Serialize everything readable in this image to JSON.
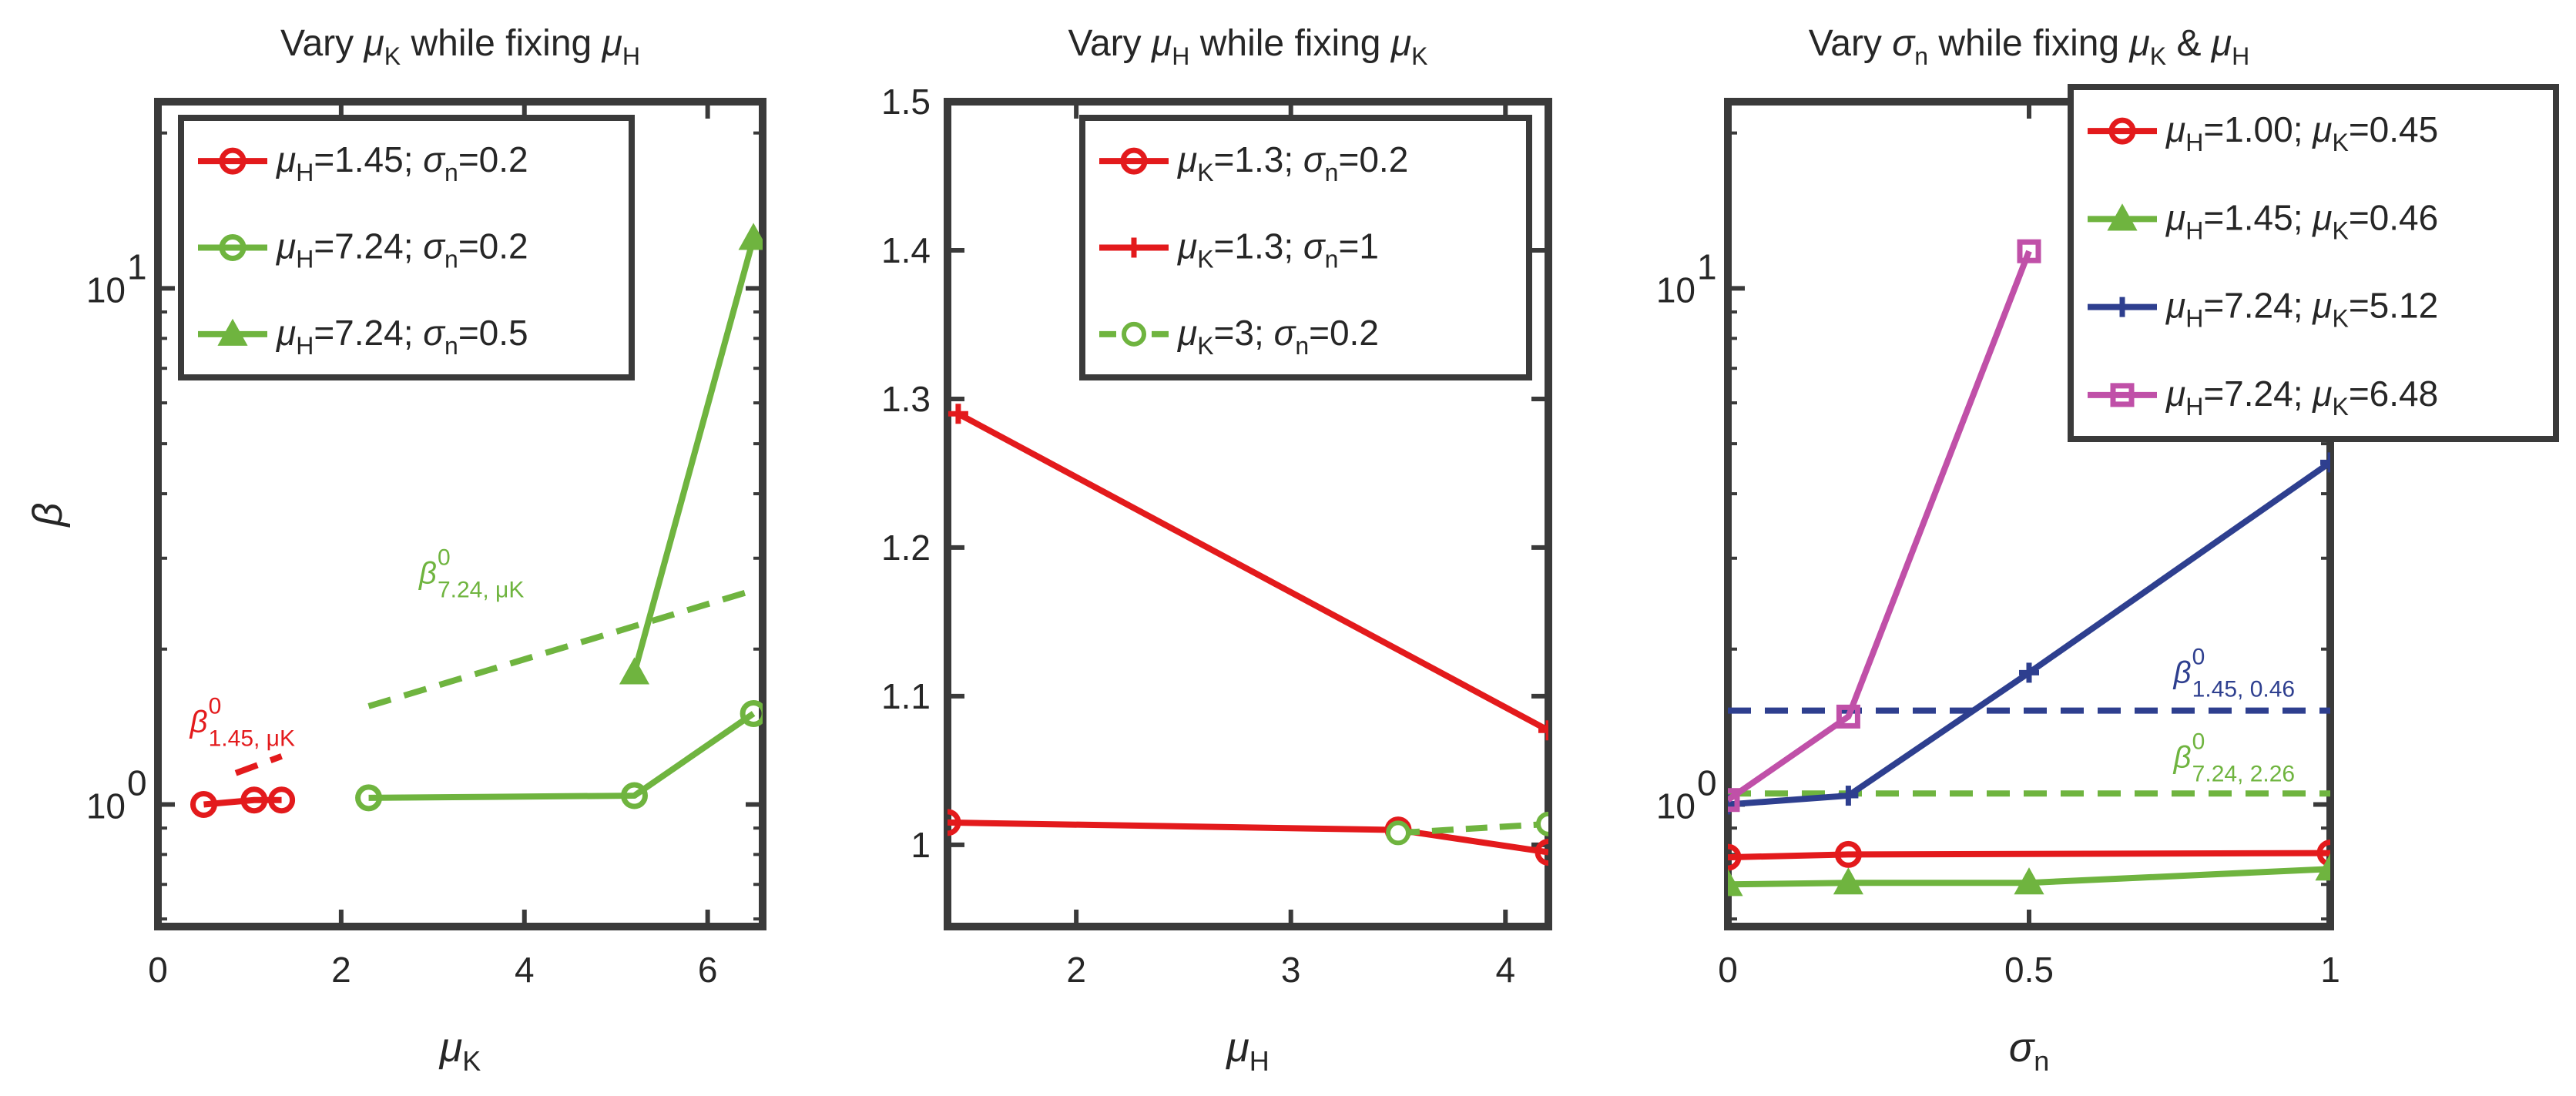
{
  "chart_data": [
    {
      "type": "line",
      "title": "Vary  μK while fixing  μH",
      "title_parts": [
        "Vary  ",
        "μ",
        "K",
        " while fixing  ",
        "μ",
        "H"
      ],
      "xlabel": "μK",
      "xlabel_parts": [
        "μ",
        "K"
      ],
      "ylabel": "β",
      "yscale": "log",
      "xlim": [
        0,
        6.6
      ],
      "ylim": [
        0.58,
        23
      ],
      "xticks": [
        0,
        2,
        4,
        6
      ],
      "xtick_labels": [
        "0",
        "2",
        "4",
        "6"
      ],
      "yticks": [
        1,
        10
      ],
      "ytick_labels": [
        {
          "base": "10",
          "exp": "0"
        },
        {
          "base": "10",
          "exp": "1"
        }
      ],
      "legend_position": "top-left",
      "series": [
        {
          "name": "μH=1.45;  σn=0.2",
          "label_parts": [
            "μ",
            "H",
            "=1.45;  ",
            "σ",
            "n",
            "=0.2"
          ],
          "color": "#e31a1c",
          "marker": "circle",
          "x": [
            0.5,
            1.05,
            1.35
          ],
          "y": [
            1.0,
            1.02,
            1.02
          ]
        },
        {
          "name": "μH=7.24;  σn=0.2",
          "label_parts": [
            "μ",
            "H",
            "=7.24;  ",
            "σ",
            "n",
            "=0.2"
          ],
          "color": "#6fb43f",
          "marker": "circle",
          "x": [
            2.3,
            5.2,
            6.5
          ],
          "y": [
            1.03,
            1.04,
            1.5
          ]
        },
        {
          "name": "μH=7.24;  σn=0.5",
          "label_parts": [
            "μ",
            "H",
            "=7.24;  ",
            "σ",
            "n",
            "=0.5"
          ],
          "color": "#6fb43f",
          "marker": "triangle",
          "x": [
            5.2,
            6.5
          ],
          "y": [
            1.8,
            12.5
          ]
        }
      ],
      "reference_lines": [
        {
          "name": "β0 1.45, μK",
          "color": "#e31a1c",
          "x": [
            0.85,
            1.35
          ],
          "y": [
            1.15,
            1.24
          ]
        },
        {
          "name": "β0 7.24, μK",
          "color": "#6fb43f",
          "x": [
            2.3,
            6.5
          ],
          "y": [
            1.55,
            2.6
          ]
        }
      ],
      "annotations": [
        {
          "text": "β",
          "sup": "0",
          "sub": "1.45,  μK",
          "color": "#e31a1c",
          "x": 0.35,
          "y": 1.38
        },
        {
          "text": "β",
          "sup": "0",
          "sub": "7.24,  μK",
          "color": "#6fb43f",
          "x": 2.85,
          "y": 2.68
        }
      ]
    },
    {
      "type": "line",
      "title": "Vary  μH while fixing  μK",
      "title_parts": [
        "Vary  ",
        "μ",
        "H",
        " while fixing  ",
        "μ",
        "K"
      ],
      "xlabel": "μH",
      "xlabel_parts": [
        "μ",
        "H"
      ],
      "ylabel": "",
      "yscale": "linear",
      "xlim": [
        1.4,
        4.2
      ],
      "ylim": [
        0.945,
        1.5
      ],
      "xticks": [
        2,
        3,
        4
      ],
      "xtick_labels": [
        "2",
        "3",
        "4"
      ],
      "yticks": [
        1,
        1.1,
        1.2,
        1.3,
        1.4,
        1.5
      ],
      "ytick_labels": [
        "1",
        "1.1",
        "1.2",
        "1.3",
        "1.4",
        "1.5"
      ],
      "legend_position": "top-right",
      "series": [
        {
          "name": "μK=1.3;  σn=0.2",
          "label_parts": [
            "μ",
            "K",
            "=1.3;  ",
            "σ",
            "n",
            "=0.2"
          ],
          "color": "#e31a1c",
          "marker": "circle",
          "x": [
            1.4,
            3.5,
            4.2
          ],
          "y": [
            1.015,
            1.01,
            0.995
          ]
        },
        {
          "name": "μK=1.3;  σn=1",
          "label_parts": [
            "μ",
            "K",
            "=1.3;  ",
            "σ",
            "n",
            "=1"
          ],
          "color": "#e31a1c",
          "marker": "plus",
          "x": [
            1.45,
            4.2
          ],
          "y": [
            1.29,
            1.077
          ]
        },
        {
          "name": "μK=3;  σn=0.2",
          "label_parts": [
            "μ",
            "K",
            "=3;  ",
            "σ",
            "n",
            "=0.2"
          ],
          "color": "#6fb43f",
          "marker": "open-circle",
          "dashed": true,
          "x": [
            3.5,
            4.2
          ],
          "y": [
            1.008,
            1.014
          ]
        }
      ]
    },
    {
      "type": "line",
      "title": "Vary  σn while fixing  μK &  μH",
      "title_parts": [
        "Vary  ",
        "σ",
        "n",
        " while fixing  ",
        "μ",
        "K",
        " &  ",
        "μ",
        "H"
      ],
      "xlabel": "σn",
      "xlabel_parts": [
        "σ",
        "n"
      ],
      "ylabel": "",
      "yscale": "log",
      "xlim": [
        0,
        1
      ],
      "ylim": [
        0.58,
        23
      ],
      "xticks": [
        0,
        0.5,
        1
      ],
      "xtick_labels": [
        "0",
        "0.5",
        "1"
      ],
      "yticks": [
        1,
        10
      ],
      "ytick_labels": [
        {
          "base": "10",
          "exp": "0"
        },
        {
          "base": "10",
          "exp": "1"
        }
      ],
      "legend_position": "top-right",
      "series": [
        {
          "name": "μH=1.00;  μK=0.45",
          "label_parts": [
            "μ",
            "H",
            "=1.00;  ",
            "μ",
            "K",
            "=0.45"
          ],
          "color": "#e31a1c",
          "marker": "circle",
          "x": [
            0,
            0.2,
            1
          ],
          "y": [
            0.79,
            0.8,
            0.805
          ]
        },
        {
          "name": "μH=1.45;  μK=0.46",
          "label_parts": [
            "μ",
            "H",
            "=1.45;  ",
            "μ",
            "K",
            "=0.46"
          ],
          "color": "#6fb43f",
          "marker": "triangle",
          "x": [
            0,
            0.2,
            0.5,
            1
          ],
          "y": [
            0.7,
            0.705,
            0.705,
            0.75
          ]
        },
        {
          "name": "μH=7.24;  μK=5.12",
          "label_parts": [
            "μ",
            "H",
            "=7.24;  ",
            "μ",
            "K",
            "=5.12"
          ],
          "color": "#2e3f8f",
          "marker": "plus",
          "x": [
            0,
            0.2,
            0.5,
            1
          ],
          "y": [
            1.0,
            1.04,
            1.8,
            4.6
          ]
        },
        {
          "name": "μH=7.24;  μK=6.48",
          "label_parts": [
            "μ",
            "H",
            "=7.24;  ",
            "μ",
            "K",
            "=6.48"
          ],
          "color": "#c050a8",
          "marker": "square",
          "x": [
            0,
            0.2,
            0.5
          ],
          "y": [
            1.02,
            1.48,
            11.8
          ]
        }
      ],
      "reference_lines": [
        {
          "name": "β0 1.45, 0.46",
          "color": "#2e3f8f",
          "x": [
            0,
            1
          ],
          "y": [
            1.52,
            1.52
          ]
        },
        {
          "name": "β0 7.24, 2.26",
          "color": "#6fb43f",
          "x": [
            0,
            1
          ],
          "y": [
            1.05,
            1.05
          ]
        }
      ],
      "annotations": [
        {
          "text": "β",
          "sup": "0",
          "sub": "1.45, 0.46",
          "color": "#2e3f8f",
          "x": 0.74,
          "y": 1.72
        },
        {
          "text": "β",
          "sup": "0",
          "sub": "7.24, 2.26",
          "color": "#6fb43f",
          "x": 0.74,
          "y": 1.18
        }
      ]
    }
  ]
}
